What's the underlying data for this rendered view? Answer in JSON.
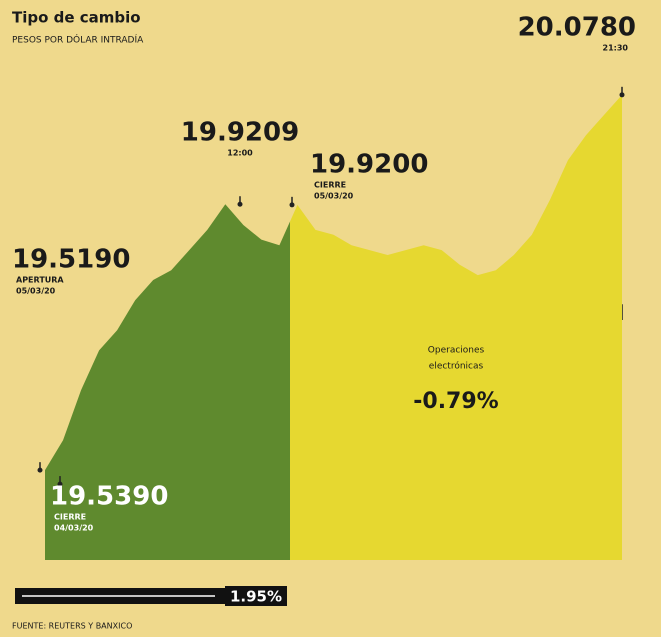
{
  "chart_data": {
    "type": "area",
    "title": "Tipo de cambio",
    "subtitle": "PESOS POR DÓLAR INTRADÍA",
    "values": [
      19.539,
      19.582,
      19.654,
      19.711,
      19.74,
      19.783,
      19.812,
      19.826,
      19.855,
      19.884,
      19.9209,
      19.891,
      19.87,
      19.862,
      19.92,
      19.884,
      19.877,
      19.862,
      19.855,
      19.848,
      19.855,
      19.862,
      19.855,
      19.834,
      19.819,
      19.826,
      19.848,
      19.877,
      19.927,
      19.984,
      20.02,
      20.049,
      20.078
    ],
    "ylim": [
      19.41,
      20.128
    ],
    "colors": [
      "#5f8a2e",
      "#e6d830"
    ],
    "annotations": [
      {
        "value": 20.078,
        "label": "20.0780",
        "note": [
          "21:30"
        ]
      },
      {
        "value": 19.9209,
        "label": "19.9209",
        "note": [
          "12:00"
        ]
      },
      {
        "value": 19.92,
        "label": "19.9200",
        "note": [
          "CIERRE",
          "05/03/20"
        ]
      },
      {
        "value": 19.519,
        "label": "19.5190",
        "note": [
          "APERTURA",
          "05/03/20"
        ]
      },
      {
        "value": 19.539,
        "label": "19.5390",
        "note": [
          "CIERRE",
          "04/03/20"
        ]
      }
    ],
    "session_note": [
      "Operaciones",
      "electrónicas"
    ],
    "session_change": "-0.79%",
    "total_change": "1.95%",
    "source": "FUENTE: REUTERS Y BANXICO"
  }
}
